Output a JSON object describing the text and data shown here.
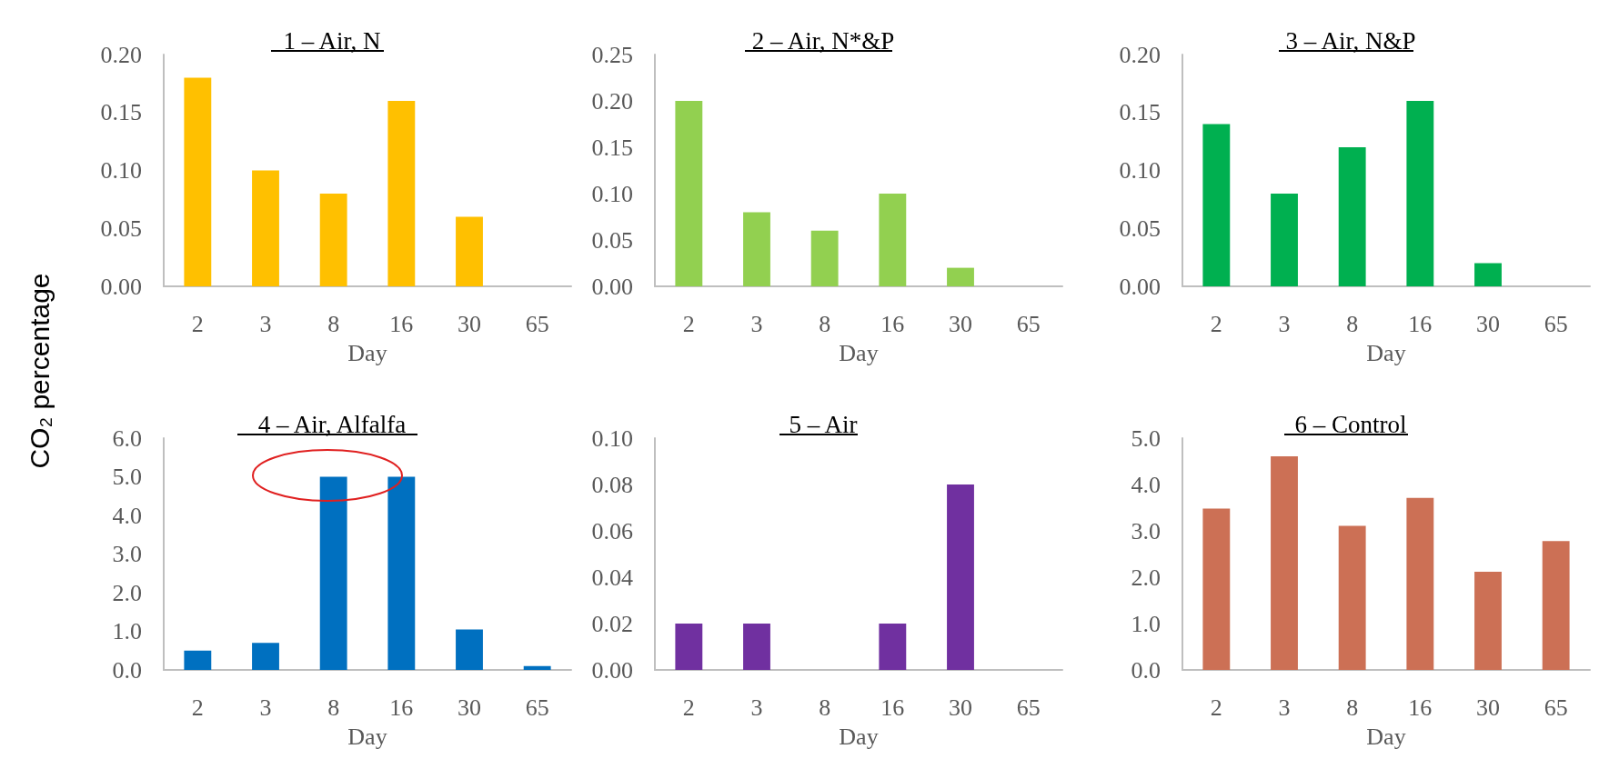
{
  "chart_data": [
    {
      "type": "bar",
      "title": "1 – Air, N",
      "xlabel": "Day",
      "ylabel": "CO₂ percentage",
      "categories": [
        "2",
        "3",
        "8",
        "16",
        "30",
        "65"
      ],
      "values": [
        0.18,
        0.1,
        0.08,
        0.16,
        0.06,
        null
      ],
      "color": "#ffc000",
      "ylim": [
        0,
        0.2
      ],
      "yticks": [
        {
          "value": 0,
          "label": "0.00"
        },
        {
          "value": 0.05,
          "label": "0.05"
        },
        {
          "value": 0.1,
          "label": "0.10"
        },
        {
          "value": 0.15,
          "label": "0.15"
        },
        {
          "value": 0.2,
          "label": "0.20"
        }
      ]
    },
    {
      "type": "bar",
      "title": "2 – Air, N*&P",
      "xlabel": "Day",
      "categories": [
        "2",
        "3",
        "8",
        "16",
        "30",
        "65"
      ],
      "values": [
        0.2,
        0.08,
        0.06,
        0.1,
        0.02,
        null
      ],
      "color": "#92d050",
      "ylim": [
        0,
        0.25
      ],
      "yticks": [
        {
          "value": 0,
          "label": "0.00"
        },
        {
          "value": 0.05,
          "label": "0.05"
        },
        {
          "value": 0.1,
          "label": "0.10"
        },
        {
          "value": 0.15,
          "label": "0.15"
        },
        {
          "value": 0.2,
          "label": "0.20"
        },
        {
          "value": 0.25,
          "label": "0.25"
        }
      ]
    },
    {
      "type": "bar",
      "title": "3 – Air, N&P",
      "xlabel": "Day",
      "categories": [
        "2",
        "3",
        "8",
        "16",
        "30",
        "65"
      ],
      "values": [
        0.14,
        0.08,
        0.12,
        0.16,
        0.02,
        null
      ],
      "color": "#00b050",
      "ylim": [
        0,
        0.2
      ],
      "yticks": [
        {
          "value": 0,
          "label": "0.00"
        },
        {
          "value": 0.05,
          "label": "0.05"
        },
        {
          "value": 0.1,
          "label": "0.10"
        },
        {
          "value": 0.15,
          "label": "0.15"
        },
        {
          "value": 0.2,
          "label": "0.20"
        }
      ]
    },
    {
      "type": "bar",
      "title": "4 – Air, Alfalfa",
      "xlabel": "Day",
      "categories": [
        "2",
        "3",
        "8",
        "16",
        "30",
        "65"
      ],
      "values": [
        0.5,
        0.7,
        5.0,
        5.0,
        1.05,
        0.1
      ],
      "color": "#0070c0",
      "ylim": [
        0,
        6
      ],
      "yticks": [
        {
          "value": 0,
          "label": "0.0"
        },
        {
          "value": 1,
          "label": "1.0"
        },
        {
          "value": 2,
          "label": "2.0"
        },
        {
          "value": 3,
          "label": "3.0"
        },
        {
          "value": 4,
          "label": "4.0"
        },
        {
          "value": 5,
          "label": "5.0"
        },
        {
          "value": 6,
          "label": "6.0"
        }
      ]
    },
    {
      "type": "bar",
      "title": "5 – Air",
      "xlabel": "Day",
      "categories": [
        "2",
        "3",
        "8",
        "16",
        "30",
        "65"
      ],
      "values": [
        0.02,
        0.02,
        null,
        0.02,
        0.08,
        null
      ],
      "color": "#7030a0",
      "ylim": [
        0,
        0.1
      ],
      "yticks": [
        {
          "value": 0,
          "label": "0.00"
        },
        {
          "value": 0.02,
          "label": "0.02"
        },
        {
          "value": 0.04,
          "label": "0.04"
        },
        {
          "value": 0.06,
          "label": "0.06"
        },
        {
          "value": 0.08,
          "label": "0.08"
        },
        {
          "value": 0.1,
          "label": "0.10"
        }
      ]
    },
    {
      "type": "bar",
      "title": "6 – Control",
      "xlabel": "Day",
      "categories": [
        "2",
        "3",
        "8",
        "16",
        "30",
        "65"
      ],
      "values": [
        3.48,
        4.61,
        3.11,
        3.71,
        2.12,
        2.78
      ],
      "color": "#cc7055",
      "ylim": [
        0,
        5
      ],
      "yticks": [
        {
          "value": 0,
          "label": "0.0"
        },
        {
          "value": 1,
          "label": "1.0"
        },
        {
          "value": 2,
          "label": "2.0"
        },
        {
          "value": 3,
          "label": "3.0"
        },
        {
          "value": 4,
          "label": "4.0"
        },
        {
          "value": 5,
          "label": "5.0"
        }
      ]
    }
  ]
}
